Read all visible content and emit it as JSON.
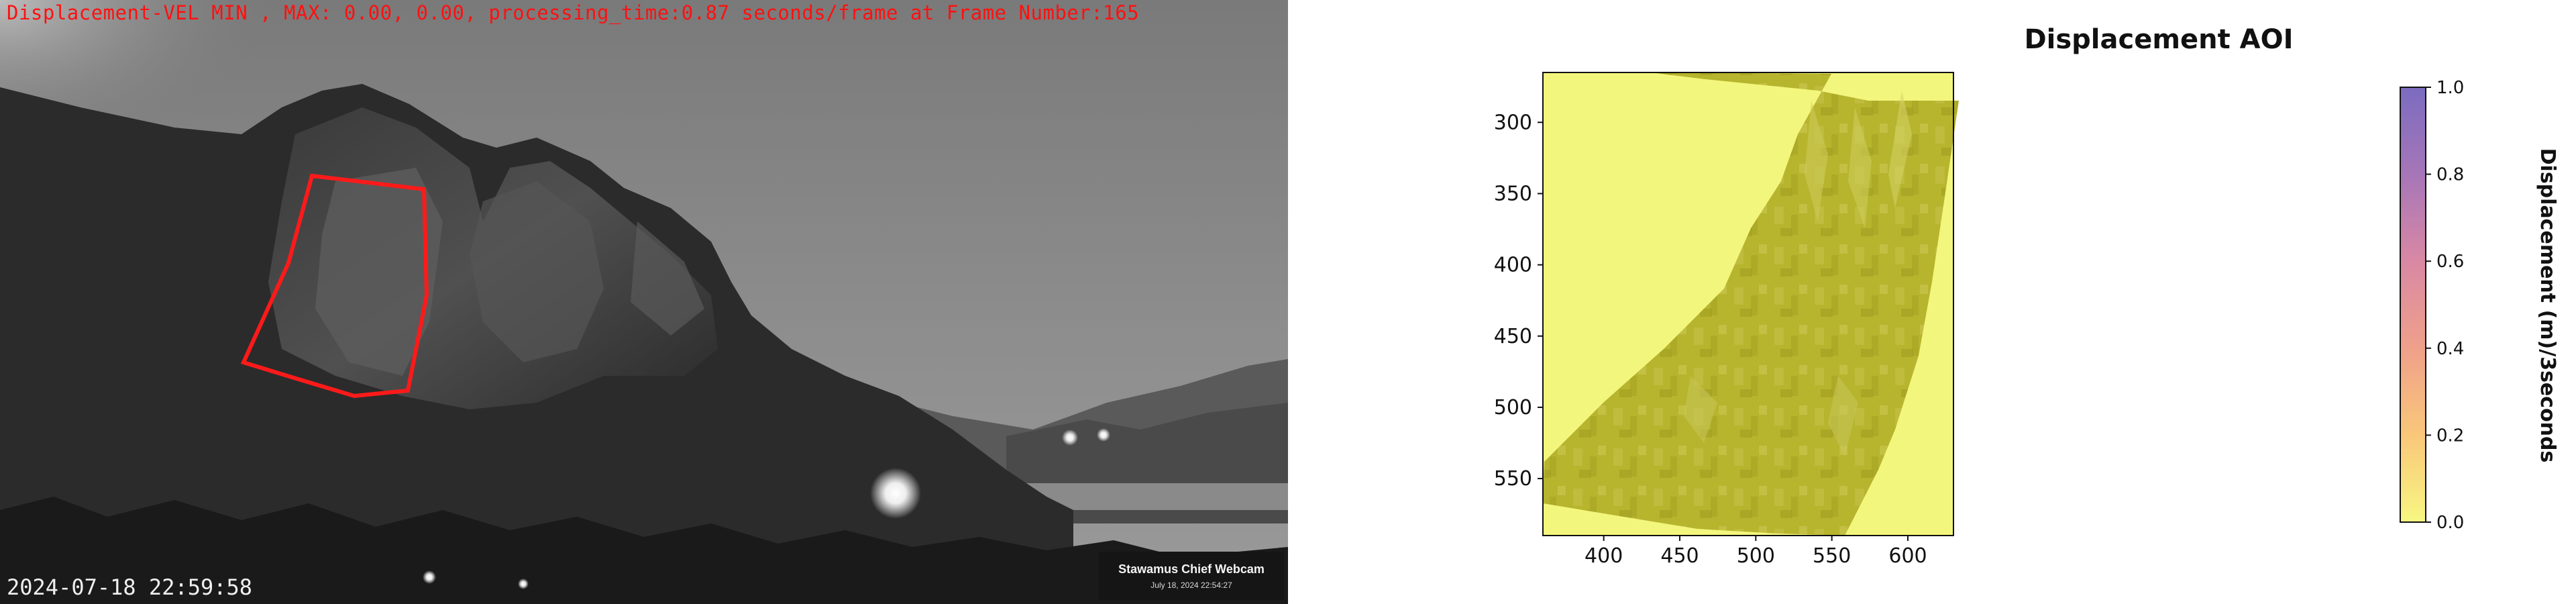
{
  "webcam": {
    "overlay_title": "Displacement-VEL MIN , MAX: 0.00, 0.00, processing_time:0.87 seconds/frame at Frame Number:165",
    "timestamp": "2024-07-18 22:59:58",
    "badge_title": "Stawamus Chief Webcam",
    "badge_subtitle": "July 18, 2024 22:54:27",
    "aoi_color": "#ff1a1a"
  },
  "plot": {
    "title": "Displacement AOI",
    "colorbar_label": "Displacement (m)/3seconds",
    "colormap_top": "#7b6cc0",
    "colormap_bottom": "#f8f782",
    "surface_color": "#b7b42e",
    "background_fill": "#f3f67c"
  },
  "chart_data": {
    "type": "heatmap",
    "title": "Displacement AOI",
    "xlabel": "",
    "ylabel": "",
    "x_ticks": [
      400,
      450,
      500,
      550,
      600
    ],
    "y_ticks": [
      300,
      350,
      400,
      450,
      500,
      550
    ],
    "xlim": [
      360,
      630
    ],
    "ylim": [
      590,
      265
    ],
    "values_summary": "all displacement values 0.0",
    "colorbar": {
      "label": "Displacement (m)/3seconds",
      "ticks": [
        0.0,
        0.2,
        0.4,
        0.6,
        0.8,
        1.0
      ],
      "tick_labels": [
        "0.0",
        "0.2",
        "0.4",
        "0.6",
        "0.8",
        "1.0"
      ],
      "range": [
        0.0,
        1.0
      ]
    }
  }
}
